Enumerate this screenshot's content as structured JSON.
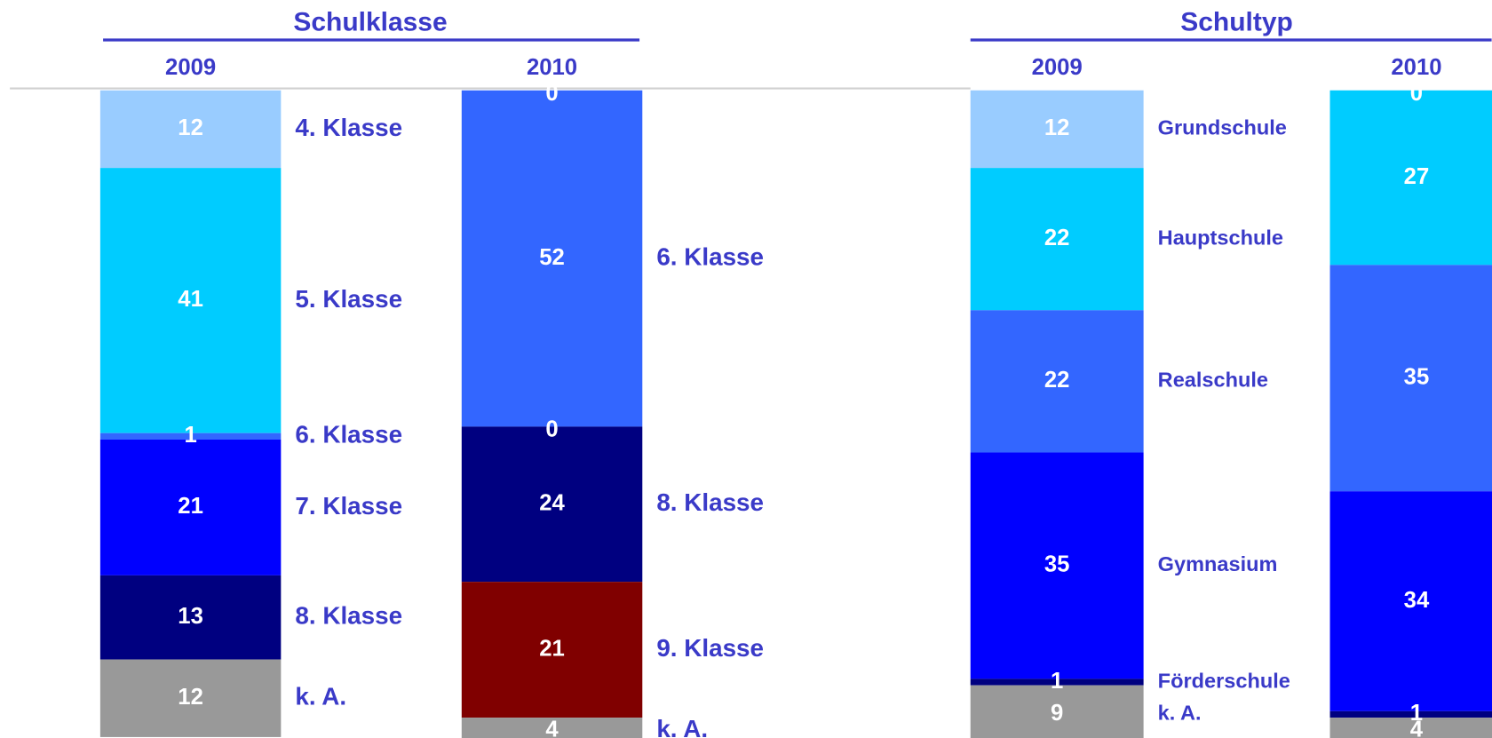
{
  "chart_data": [
    {
      "type": "stacked_bar",
      "title": "Schulklasse",
      "categories": [
        "2009",
        "2010"
      ],
      "ylim": [
        0,
        100
      ],
      "series": [
        {
          "name": "4. Klasse",
          "color": "#99ccff",
          "values": [
            12,
            null
          ]
        },
        {
          "name": "5. Klasse",
          "color": "#00ccff",
          "values": [
            41,
            0
          ]
        },
        {
          "name": "6. Klasse",
          "color": "#3366ff",
          "values": [
            1,
            52
          ]
        },
        {
          "name": "7. Klasse",
          "color": "#0000ff",
          "values": [
            21,
            0
          ]
        },
        {
          "name": "8. Klasse",
          "color": "#000080",
          "values": [
            13,
            24
          ]
        },
        {
          "name": "9. Klasse",
          "color": "#800000",
          "values": [
            null,
            21
          ]
        },
        {
          "name": "k. A.",
          "color": "#999999",
          "values": [
            12,
            4
          ]
        }
      ]
    },
    {
      "type": "stacked_bar",
      "title": "Schultyp",
      "categories": [
        "2009",
        "2010"
      ],
      "ylim": [
        0,
        100
      ],
      "series": [
        {
          "name": "Grundschule",
          "color": "#99ccff",
          "values": [
            12,
            0
          ]
        },
        {
          "name": "Hauptschule",
          "color": "#00ccff",
          "values": [
            22,
            27
          ]
        },
        {
          "name": "Realschule",
          "color": "#3366ff",
          "values": [
            22,
            35
          ]
        },
        {
          "name": "Gymnasium",
          "color": "#0000ff",
          "values": [
            35,
            34
          ]
        },
        {
          "name": "Förderschule",
          "color": "#000080",
          "values": [
            1,
            1
          ]
        },
        {
          "name": "k. A.",
          "color": "#999999",
          "values": [
            9,
            4
          ]
        }
      ]
    }
  ]
}
